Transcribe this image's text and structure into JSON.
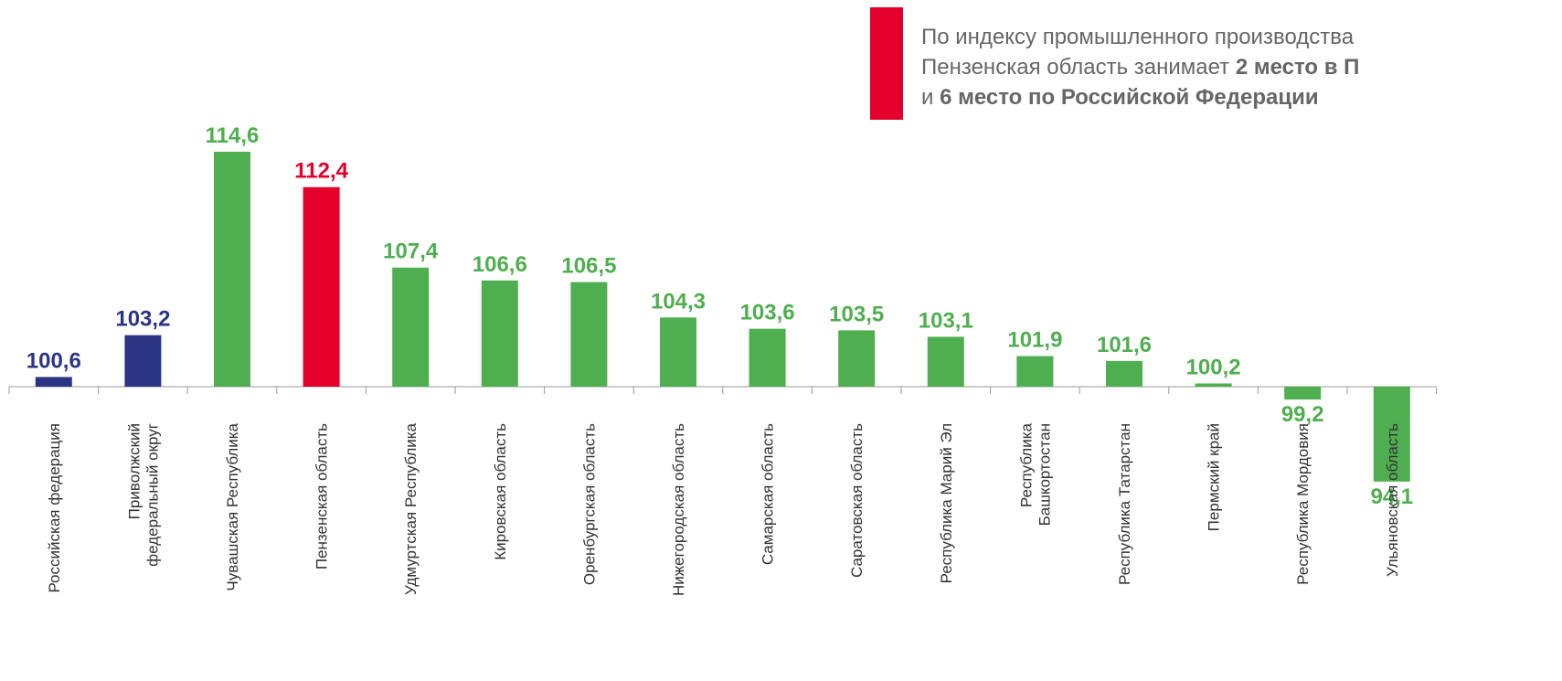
{
  "chart_data": {
    "type": "bar",
    "annotation": [
      [
        {
          "text": "По индексу промышленного производства",
          "bold": false
        }
      ],
      [
        {
          "text": "Пензенская область занимает ",
          "bold": false
        },
        {
          "text": "2 место в П",
          "bold": true
        }
      ],
      [
        {
          "text": "и ",
          "bold": false
        },
        {
          "text": "6 место по Российской Федерации",
          "bold": true
        }
      ]
    ],
    "annotation_color": "#e4002b",
    "categories": [
      "Российская федерация",
      "Приволжский\nфедеральный округ",
      "Чувашская Республика",
      "Пензенская область",
      "Удмуртская Республика",
      "Кировская область",
      "Оренбургская область",
      "Нижегородская область",
      "Самарская область",
      "Саратовская область",
      "Республика Марий Эл",
      "Республика\nБашкортостан",
      "Республика Татарстан",
      "Пермский край",
      "Республика Мордовия",
      "Ульяновская область"
    ],
    "values": [
      100.6,
      103.2,
      114.6,
      112.4,
      107.4,
      106.6,
      106.5,
      104.3,
      103.6,
      103.5,
      103.1,
      101.9,
      101.6,
      100.2,
      99.2,
      94.1
    ],
    "value_labels": [
      "100,6",
      "103,2",
      "114,6",
      "112,4",
      "107,4",
      "106,6",
      "106,5",
      "104,3",
      "103,6",
      "103,5",
      "103,1",
      "101,9",
      "101,6",
      "100,2",
      "99,2",
      "94,1"
    ],
    "colors": [
      "#2b3483",
      "#2b3483",
      "#4fae4f",
      "#e4002b",
      "#4fae4f",
      "#4fae4f",
      "#4fae4f",
      "#4fae4f",
      "#4fae4f",
      "#4fae4f",
      "#4fae4f",
      "#4fae4f",
      "#4fae4f",
      "#4fae4f",
      "#4fae4f",
      "#4fae4f"
    ],
    "baseline": 100
  }
}
